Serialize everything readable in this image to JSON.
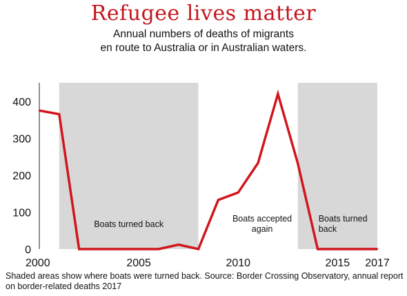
{
  "chart_data": {
    "type": "line",
    "title": "Refugee lives matter",
    "subtitle_lines": [
      "Annual numbers of deaths of migrants",
      "en route to Australia or in Australian waters."
    ],
    "x": [
      2000,
      2001,
      2002,
      2003,
      2004,
      2005,
      2006,
      2007,
      2008,
      2009,
      2010,
      2011,
      2012,
      2013,
      2014,
      2015,
      2016,
      2017
    ],
    "series": [
      {
        "values": [
          375,
          365,
          0,
          0,
          0,
          0,
          0,
          12,
          0,
          133,
          153,
          233,
          420,
          232,
          0,
          0,
          0,
          0
        ]
      }
    ],
    "xlim": [
      2000,
      2017
    ],
    "ylim": [
      0,
      450
    ],
    "x_ticks": [
      2000,
      2005,
      2010,
      2015,
      2017
    ],
    "y_ticks": [
      0,
      100,
      200,
      300,
      400
    ],
    "shaded_regions": [
      {
        "from": 2001,
        "to": 2008,
        "label_lines": [
          "Boats turned back"
        ]
      },
      {
        "from": 2013,
        "to": 2017,
        "label_lines": [
          "Boats turned",
          "back"
        ]
      }
    ],
    "annotations": [
      {
        "x": 2011,
        "label_lines": [
          "Boats accepted",
          "again"
        ]
      }
    ],
    "line_color": "#d0161c",
    "shade_color": "#d8d8d8",
    "caption": "Shaded areas show where boats were turned back. Source: Border Crossing Observatory, annual report on border-related deaths 2017"
  }
}
